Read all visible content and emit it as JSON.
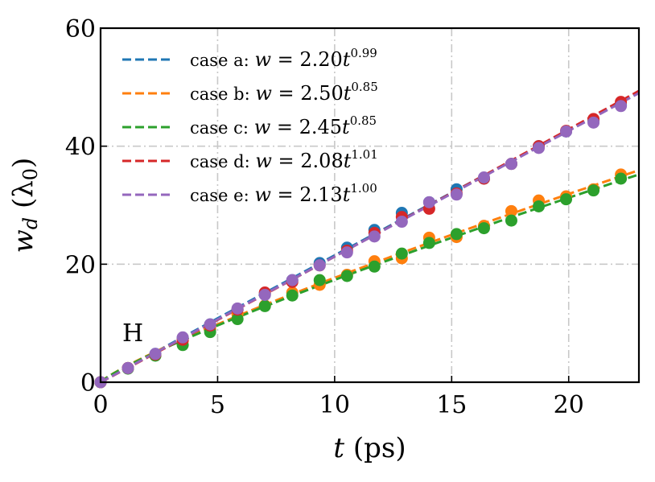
{
  "chart_data": {
    "type": "scatter",
    "title": "",
    "panel_label": "H",
    "xlabel": {
      "var": "t",
      "rest": " (ps)"
    },
    "ylabel": {
      "var": "w",
      "sub": "d",
      "rest": " (λ",
      "rest_sub": "0",
      "close": ")"
    },
    "xlim": [
      0,
      23
    ],
    "ylim": [
      0,
      60
    ],
    "xticks": [
      0,
      5,
      10,
      15,
      20
    ],
    "yticks": [
      0,
      20,
      40,
      60
    ],
    "grid": true,
    "legend_position": "top-left",
    "fit_style": "dashed",
    "series": [
      {
        "name": "case a",
        "color": "#1f77b4",
        "fit": {
          "a": 2.2,
          "b": 0.99
        },
        "legend": {
          "prefix": "case a: ",
          "var": "w",
          "eq": " = 2.20",
          "tvar": "t",
          "exp": "0.99"
        },
        "x": [
          0,
          1.17,
          2.34,
          3.51,
          4.68,
          5.85,
          7.02,
          8.19,
          9.36,
          10.53,
          11.7,
          12.87,
          14.04,
          15.21,
          16.38,
          17.55,
          18.72,
          19.89,
          21.06,
          22.23
        ],
        "y": [
          0,
          2.4,
          4.8,
          7.5,
          9.8,
          12.3,
          15.0,
          17.3,
          20.2,
          22.8,
          25.8,
          28.7,
          30.5,
          32.7,
          34.5,
          37.0,
          40.0,
          42.5,
          44.3,
          47.0
        ]
      },
      {
        "name": "case b",
        "color": "#ff7f0e",
        "fit": {
          "a": 2.5,
          "b": 0.85
        },
        "legend": {
          "prefix": "case b: ",
          "var": "w",
          "eq": " = 2.50",
          "tvar": "t",
          "exp": "0.85"
        },
        "x": [
          0,
          1.17,
          2.34,
          3.51,
          4.68,
          5.85,
          7.02,
          8.19,
          9.36,
          10.53,
          11.7,
          12.87,
          14.04,
          15.21,
          16.38,
          17.55,
          18.72,
          19.89,
          21.06,
          22.23
        ],
        "y": [
          0,
          2.4,
          4.6,
          7.0,
          9.0,
          11.5,
          13.0,
          15.2,
          16.5,
          18.2,
          20.5,
          21.0,
          24.5,
          24.6,
          26.5,
          29.0,
          30.8,
          31.5,
          32.7,
          35.2
        ]
      },
      {
        "name": "case c",
        "color": "#2ca02c",
        "fit": {
          "a": 2.45,
          "b": 0.85
        },
        "legend": {
          "prefix": "case c: ",
          "var": "w",
          "eq": " = 2.45",
          "tvar": "t",
          "exp": "0.85"
        },
        "x": [
          0,
          1.17,
          2.34,
          3.51,
          4.68,
          5.85,
          7.02,
          8.19,
          9.36,
          10.53,
          11.7,
          12.87,
          14.04,
          15.21,
          16.38,
          17.55,
          18.72,
          19.89,
          21.06,
          22.23
        ],
        "y": [
          0,
          2.3,
          4.5,
          6.3,
          8.5,
          10.7,
          12.9,
          14.7,
          17.3,
          18.0,
          19.6,
          21.8,
          23.6,
          25.1,
          26.1,
          27.4,
          29.8,
          31.0,
          32.5,
          34.5
        ]
      },
      {
        "name": "case d",
        "color": "#d62728",
        "fit": {
          "a": 2.08,
          "b": 1.01
        },
        "legend": {
          "prefix": "case d: ",
          "var": "w",
          "eq": " = 2.08",
          "tvar": "t",
          "exp": "1.01"
        },
        "x": [
          0,
          1.17,
          2.34,
          3.51,
          4.68,
          5.85,
          7.02,
          8.19,
          9.36,
          10.53,
          11.7,
          12.87,
          14.04,
          15.21,
          16.38,
          17.55,
          18.72,
          19.89,
          21.06,
          22.23
        ],
        "y": [
          0,
          2.4,
          4.7,
          7.2,
          9.6,
          12.3,
          15.2,
          17.0,
          19.8,
          22.3,
          25.3,
          28.0,
          29.4,
          32.0,
          34.5,
          37.0,
          40.0,
          42.6,
          44.6,
          47.5
        ]
      },
      {
        "name": "case e",
        "color": "#9467bd",
        "fit": {
          "a": 2.13,
          "b": 1.0
        },
        "legend": {
          "prefix": "case e: ",
          "var": "w",
          "eq": " = 2.13",
          "tvar": "t",
          "exp": "1.00"
        },
        "x": [
          0,
          1.17,
          2.34,
          3.51,
          4.68,
          5.85,
          7.02,
          8.19,
          9.36,
          10.53,
          11.7,
          12.87,
          14.04,
          15.21,
          16.38,
          17.55,
          18.72,
          19.89,
          21.06,
          22.23
        ],
        "y": [
          0,
          2.4,
          4.8,
          7.6,
          9.8,
          12.5,
          14.8,
          17.3,
          19.8,
          22.0,
          24.7,
          27.2,
          30.5,
          31.8,
          34.7,
          37.0,
          39.7,
          42.5,
          44.0,
          46.8
        ]
      }
    ]
  }
}
